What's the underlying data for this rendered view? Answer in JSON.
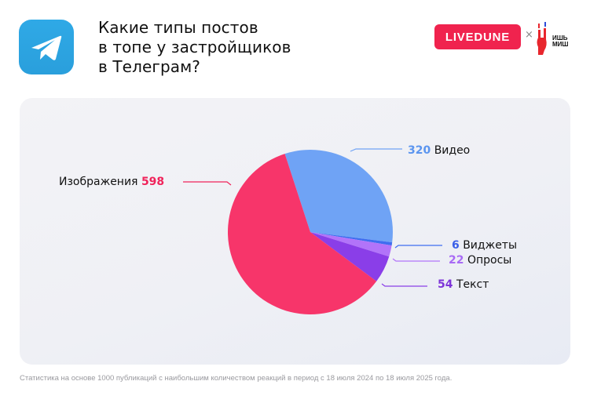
{
  "header": {
    "icon": "telegram-icon",
    "title_lines": [
      "Какие типы постов",
      "в топе у застройщиков",
      "в Телеграм?"
    ],
    "brand_label": "LIVEDUNE",
    "brand_color": "#f0234e",
    "separator": "×",
    "partner_logo": "ishmish-logo",
    "partner_text_lines": [
      "ИШЬ",
      "МИШ"
    ]
  },
  "chart_data": {
    "type": "pie",
    "title": "Какие типы постов в топе у застройщиков в Телеграм?",
    "total": 1000,
    "categories": [
      "Видео",
      "Виджеты",
      "Опросы",
      "Текст",
      "Изображения"
    ],
    "values": [
      320,
      6,
      22,
      54,
      598
    ],
    "colors": [
      "#6fa3f5",
      "#3f6df0",
      "#b274f9",
      "#8a3ee8",
      "#f7356a"
    ],
    "start_angle_deg": -108,
    "direction": "clockwise",
    "legend": "callout labels"
  },
  "labels": {
    "video": {
      "num": "320",
      "text": "Видео",
      "color": "#5b95ef"
    },
    "widgets": {
      "num": "6",
      "text": "Виджеты",
      "color": "#3a5fe8"
    },
    "polls": {
      "num": "22",
      "text": "Опросы",
      "color": "#a86af5"
    },
    "text": {
      "num": "54",
      "text": "Текст",
      "color": "#7d34d8"
    },
    "images": {
      "num": "598",
      "text": "Изображения",
      "color": "#f0235a"
    }
  },
  "footer": {
    "note": "Статистика на основе 1000 публикаций с наибольшим количеством реакций в период с 18 июля 2024 по 18 июля 2025 года."
  }
}
